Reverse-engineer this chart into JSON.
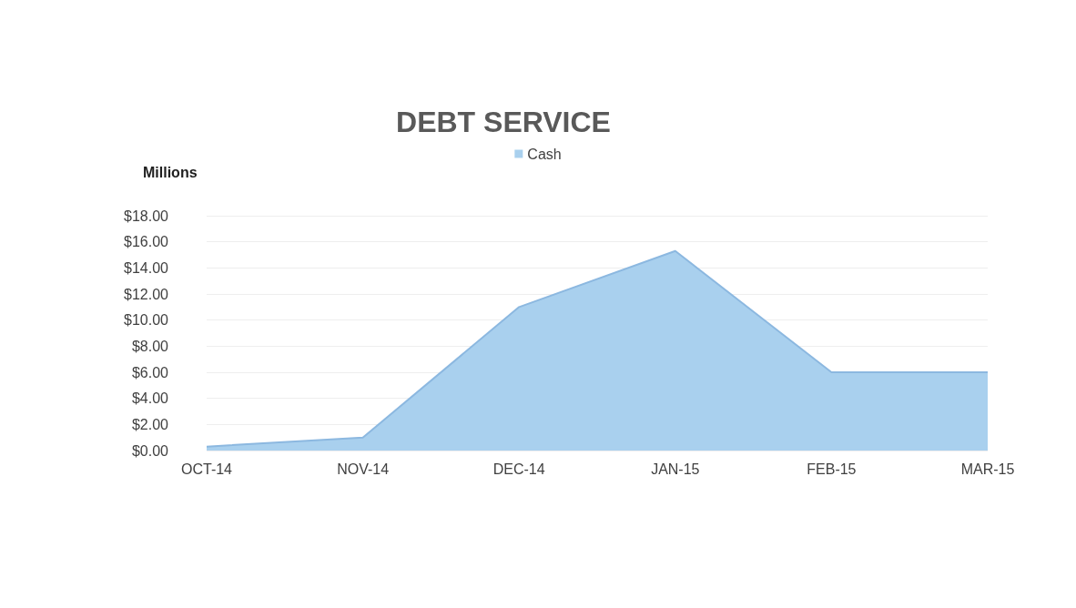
{
  "chart_data": {
    "type": "area",
    "title": "DEBT SERVICE",
    "ylabel": "Millions",
    "categories": [
      "OCT-14",
      "NOV-14",
      "DEC-14",
      "JAN-15",
      "FEB-15",
      "MAR-15"
    ],
    "series": [
      {
        "name": "Cash",
        "color": "#a9d0ee",
        "values": [
          0.3,
          1.0,
          11.0,
          15.3,
          6.0,
          6.0
        ]
      }
    ],
    "ylim": [
      0,
      18
    ],
    "yticks": [
      {
        "value": 0,
        "label": "$0.00"
      },
      {
        "value": 2,
        "label": "$2.00"
      },
      {
        "value": 4,
        "label": "$4.00"
      },
      {
        "value": 6,
        "label": "$6.00"
      },
      {
        "value": 8,
        "label": "$8.00"
      },
      {
        "value": 10,
        "label": "$10.00"
      },
      {
        "value": 12,
        "label": "$12.00"
      },
      {
        "value": 14,
        "label": "$14.00"
      },
      {
        "value": 16,
        "label": "$16.00"
      },
      {
        "value": 18,
        "label": "$18.00"
      }
    ],
    "grid": "y",
    "legend": "top"
  }
}
